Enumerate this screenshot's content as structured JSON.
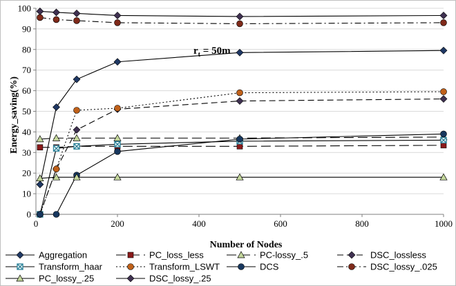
{
  "chart_data": {
    "type": "line",
    "title": "",
    "xlabel": "Number of Nodes",
    "ylabel": "Energy_saving(%)",
    "xlim": [
      0,
      1000
    ],
    "ylim": [
      0,
      100
    ],
    "xticks": [
      0,
      200,
      400,
      600,
      800,
      1000
    ],
    "yticks": [
      0,
      10,
      20,
      30,
      40,
      50,
      60,
      70,
      80,
      90,
      100
    ],
    "grid": "horizontal",
    "legend_position": "bottom",
    "annotation": {
      "main": "r",
      "sub": "t",
      "rest": " = 50m"
    },
    "series": [
      {
        "name": "Aggregation",
        "color": "#1f3864",
        "marker": "diamond",
        "dash": "solid",
        "x": [
          10,
          50,
          100,
          200,
          500,
          1000
        ],
        "y": [
          14.5,
          52,
          65.5,
          74,
          78.5,
          79.5
        ]
      },
      {
        "name": "PC_loss_less",
        "color": "#8b1a1a",
        "marker": "square",
        "dash": "longdash",
        "x": [
          10,
          50,
          100,
          200,
          500,
          1000
        ],
        "y": [
          32.5,
          32.5,
          33,
          33,
          33,
          33.5
        ]
      },
      {
        "name": "PC-lossy_.5",
        "color": "#4f6228",
        "marker": "triangle",
        "dash": "longdash",
        "x": [
          10,
          50,
          100,
          200,
          500,
          1000
        ],
        "y": [
          36.5,
          37,
          37,
          37,
          37,
          37.5
        ]
      },
      {
        "name": "DSC_lossless",
        "color": "#3f3151",
        "marker": "diamond",
        "dash": "dash",
        "x": [
          10,
          50,
          100,
          200,
          500,
          1000
        ],
        "y": [
          0,
          22,
          41,
          51,
          55,
          56
        ]
      },
      {
        "name": "Transform_haar",
        "color": "#31859c",
        "marker": "xsquare",
        "dash": "solid",
        "x": [
          10,
          50,
          100,
          200,
          500,
          1000
        ],
        "y": [
          0,
          32,
          33,
          34,
          35.5,
          36
        ]
      },
      {
        "name": "Transform_LSWT",
        "color": "#c0611a",
        "marker": "circle",
        "dash": "dotted",
        "x": [
          10,
          50,
          100,
          200,
          500,
          1000
        ],
        "y": [
          0,
          22,
          50.5,
          51.5,
          59,
          59.5
        ]
      },
      {
        "name": "DCS",
        "color": "#17375e",
        "marker": "circle",
        "dash": "solid",
        "x": [
          10,
          50,
          100,
          200,
          500,
          1000
        ],
        "y": [
          0,
          0,
          19,
          30.5,
          36.5,
          39
        ]
      },
      {
        "name": "DSC_lossy_.025",
        "color": "#7f2a1a",
        "marker": "circle",
        "dash": "dashdot",
        "x": [
          10,
          50,
          100,
          200,
          500,
          1000
        ],
        "y": [
          95.5,
          94.5,
          94,
          93,
          92.5,
          93
        ]
      },
      {
        "name": "PC_lossy_.25",
        "color": "#4f6228",
        "marker": "triangle",
        "dash": "solid",
        "x": [
          10,
          50,
          100,
          200,
          500,
          1000
        ],
        "y": [
          17.5,
          18,
          18,
          18,
          18,
          18
        ]
      },
      {
        "name": "DSC_lossy_.25",
        "color": "#3f3151",
        "marker": "diamond",
        "dash": "solid",
        "x": [
          10,
          50,
          100,
          200,
          500,
          1000
        ],
        "y": [
          98.5,
          98,
          97.5,
          96.5,
          96,
          96.5
        ]
      }
    ]
  }
}
